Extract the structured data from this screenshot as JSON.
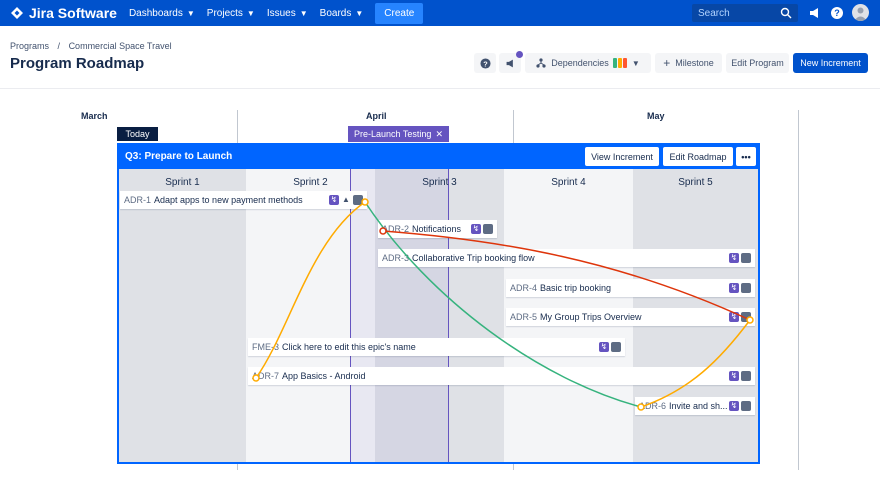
{
  "app": {
    "name": "Jira Software"
  },
  "nav": {
    "items": [
      {
        "label": "Dashboards"
      },
      {
        "label": "Projects"
      },
      {
        "label": "Issues"
      },
      {
        "label": "Boards"
      }
    ],
    "create_label": "Create",
    "search_placeholder": "Search"
  },
  "breadcrumb": {
    "items": [
      "Programs",
      "/",
      "Commercial Space Travel"
    ]
  },
  "page": {
    "title": "Program Roadmap"
  },
  "toolbar": {
    "dependencies_label": "Dependencies",
    "milestone_label": "Milestone",
    "edit_program_label": "Edit Program",
    "new_increment_label": "New Increment",
    "dependency_colors": [
      "#36b37e",
      "#ffab00",
      "#ff5630"
    ]
  },
  "timeline": {
    "months": [
      "March",
      "April",
      "May"
    ]
  },
  "markers": {
    "today_label": "Today",
    "milestone_label": "Pre-Launch Testing"
  },
  "increment": {
    "title": "Q3: Prepare to Launch",
    "view_label": "View Increment",
    "edit_label": "Edit Roadmap",
    "more_label": "•••",
    "sprints": [
      "Sprint 1",
      "Sprint 2",
      "Sprint 3",
      "Sprint 4",
      "Sprint 5"
    ]
  },
  "epics": [
    {
      "key": "ADR-1",
      "name": "Adapt apps to new payment methods"
    },
    {
      "key": "ADR-2",
      "name": "Notifications"
    },
    {
      "key": "ADR-3",
      "name": "Collaborative Trip booking flow"
    },
    {
      "key": "ADR-4",
      "name": "Basic trip booking"
    },
    {
      "key": "ADR-5",
      "name": "My Group Trips Overview"
    },
    {
      "key": "FME-3",
      "name": "Click here to edit this epic's name"
    },
    {
      "key": "ADR-7",
      "name": "App Basics - Android"
    },
    {
      "key": "ADR-6",
      "name": "Invite and sh..."
    }
  ],
  "colors": {
    "brand": "#0052cc",
    "increment": "#0065ff",
    "epic_badge": "#6554c0",
    "dep_yellow": "#ffab00",
    "dep_green": "#36b37e",
    "dep_red": "#de350b"
  }
}
